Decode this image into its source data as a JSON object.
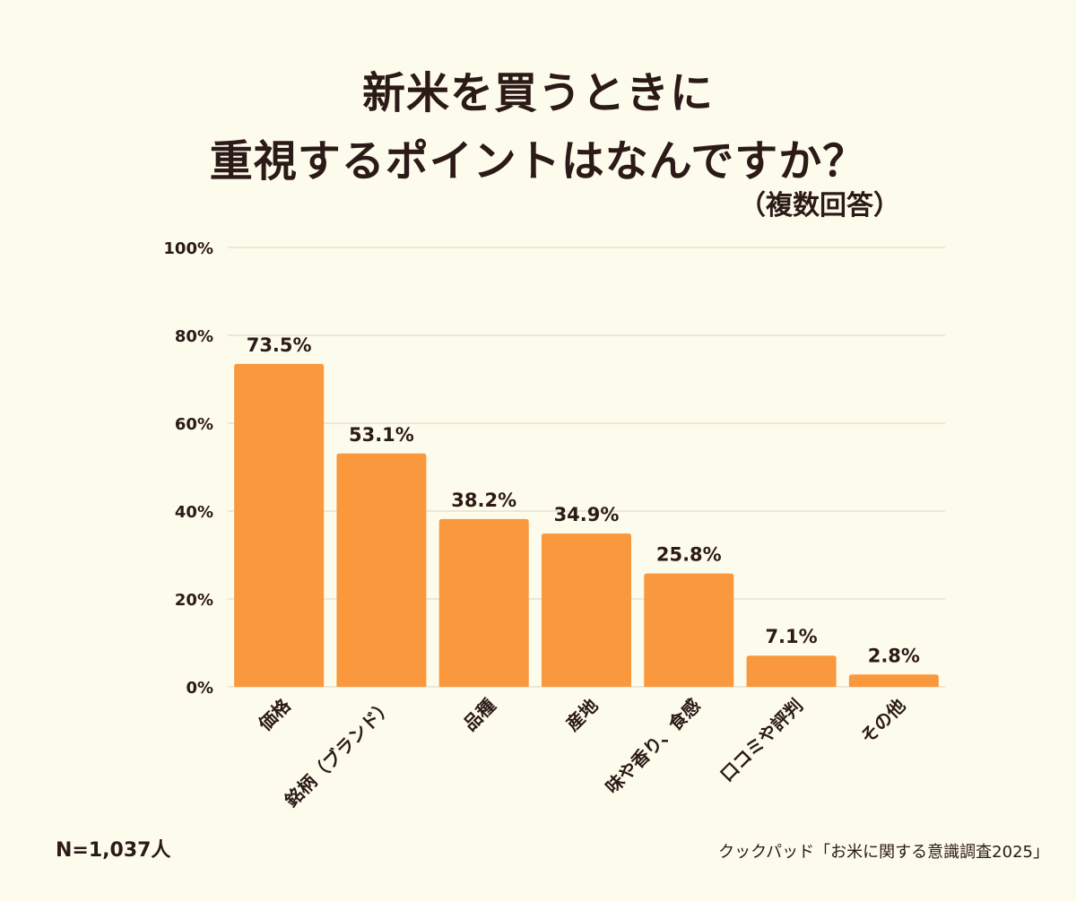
{
  "header": {
    "title_line1": "新米を買うときに",
    "title_line2": "重視するポイントはなんですか？",
    "subtitle": "（複数回答）"
  },
  "footer": {
    "sample_size": "N=1,037人",
    "source": "クックパッド「お米に関する意識調査2025」"
  },
  "chart_data": {
    "type": "bar",
    "title": "新米を買うときに重視するポイントはなんですか？",
    "subtitle": "（複数回答）",
    "categories": [
      "価格",
      "銘柄（ブランド）",
      "品種",
      "産地",
      "味や香り、食感",
      "口コミや評判",
      "その他"
    ],
    "values": [
      73.5,
      53.1,
      38.2,
      34.9,
      25.8,
      7.1,
      2.8
    ],
    "value_labels": [
      "73.5%",
      "53.1%",
      "38.2%",
      "34.9%",
      "25.8%",
      "7.1%",
      "2.8%"
    ],
    "yticks": [
      "0%",
      "20%",
      "40%",
      "60%",
      "80%",
      "100%"
    ],
    "ylim": [
      0,
      100
    ],
    "xlabel": "",
    "ylabel": "",
    "grid": true,
    "legend": "none",
    "colors": {
      "bar": "#f9983c",
      "grid": "#d9d5c3",
      "text": "#2b1a17",
      "background": "#fdfbeb"
    }
  }
}
